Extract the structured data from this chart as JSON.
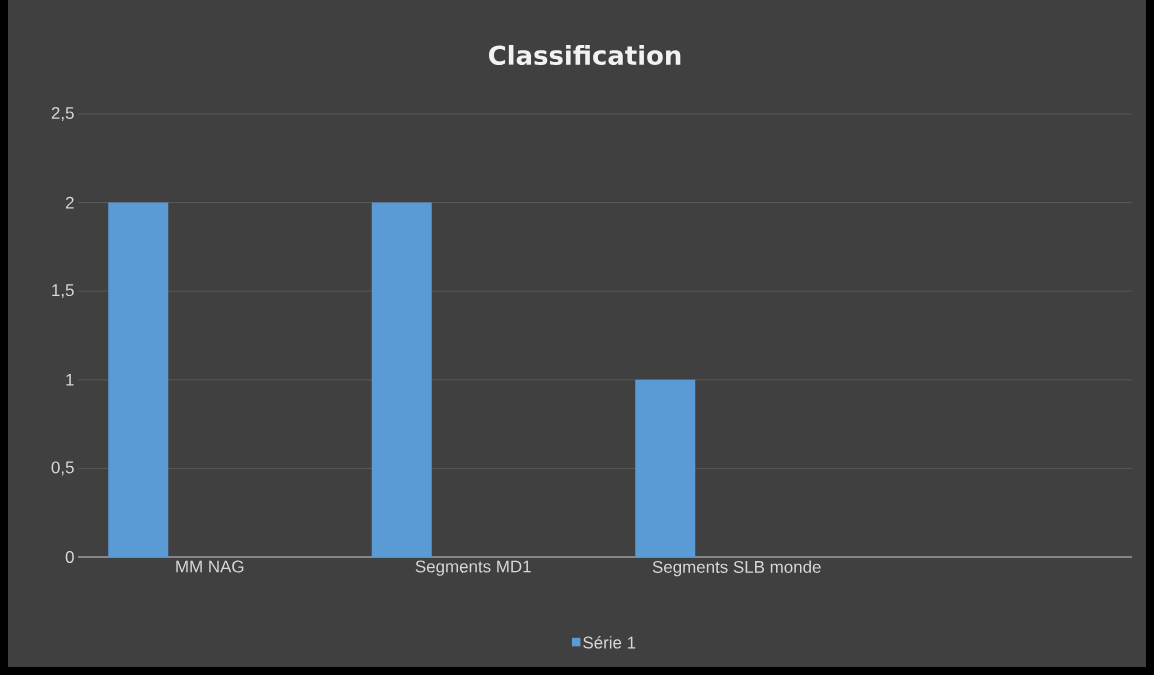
{
  "chart_data": {
    "type": "bar",
    "title": "Classification",
    "categories": [
      "MM NAG",
      "Segments MD1",
      "Segments SLB monde",
      null
    ],
    "series": [
      {
        "name": "Série 1",
        "color": "#5b9bd5",
        "values": [
          2,
          2,
          1,
          null
        ]
      }
    ],
    "ylim": [
      0,
      2.5
    ],
    "yticks": [
      0,
      {
        "value": 0.5,
        "label": "0,5"
      },
      1,
      {
        "value": 1.5,
        "label": "1,5"
      },
      2,
      {
        "value": 2.5,
        "label": "2,5"
      }
    ],
    "grid": "y",
    "legend": "bottom"
  }
}
